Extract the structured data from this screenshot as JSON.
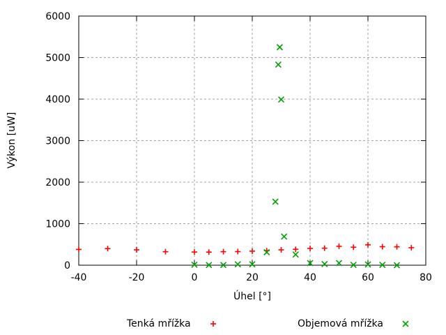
{
  "chart_data": {
    "type": "scatter",
    "title": "",
    "xlabel": "Úhel [°]",
    "ylabel": "Výkon [uW]",
    "xlim": [
      -40,
      80
    ],
    "ylim": [
      0,
      6000
    ],
    "xticks": [
      -40,
      -20,
      0,
      20,
      40,
      60,
      80
    ],
    "yticks": [
      0,
      1000,
      2000,
      3000,
      4000,
      5000,
      6000
    ],
    "grid": true,
    "legend_position": "below-plot-outside",
    "axis_color": "#000000",
    "grid_color": "#a0a0a0",
    "text_color": "#000000",
    "series": [
      {
        "name": "Tenká mřížka",
        "marker": "plus",
        "color": "#ff0000",
        "points": [
          [
            -40,
            380
          ],
          [
            -30,
            400
          ],
          [
            -20,
            370
          ],
          [
            -10,
            325
          ],
          [
            0,
            318
          ],
          [
            5,
            316
          ],
          [
            10,
            326
          ],
          [
            15,
            328
          ],
          [
            20,
            338
          ],
          [
            25,
            350
          ],
          [
            30,
            370
          ],
          [
            35,
            382
          ],
          [
            40,
            405
          ],
          [
            45,
            410
          ],
          [
            50,
            455
          ],
          [
            55,
            433
          ],
          [
            60,
            490
          ],
          [
            65,
            445
          ],
          [
            70,
            443
          ],
          [
            75,
            422
          ]
        ]
      },
      {
        "name": "Objemová mřížka",
        "marker": "cross",
        "color": "#00a000",
        "points": [
          [
            0,
            12
          ],
          [
            5,
            5
          ],
          [
            10,
            5
          ],
          [
            15,
            22
          ],
          [
            20,
            22
          ],
          [
            25,
            313
          ],
          [
            28,
            1530
          ],
          [
            29,
            4830
          ],
          [
            29.5,
            5250
          ],
          [
            30,
            3990
          ],
          [
            31,
            690
          ],
          [
            35,
            258
          ],
          [
            40,
            51
          ],
          [
            45,
            28
          ],
          [
            50,
            51
          ],
          [
            55,
            8
          ],
          [
            60,
            18
          ],
          [
            65,
            8
          ],
          [
            70,
            0
          ]
        ]
      }
    ]
  }
}
